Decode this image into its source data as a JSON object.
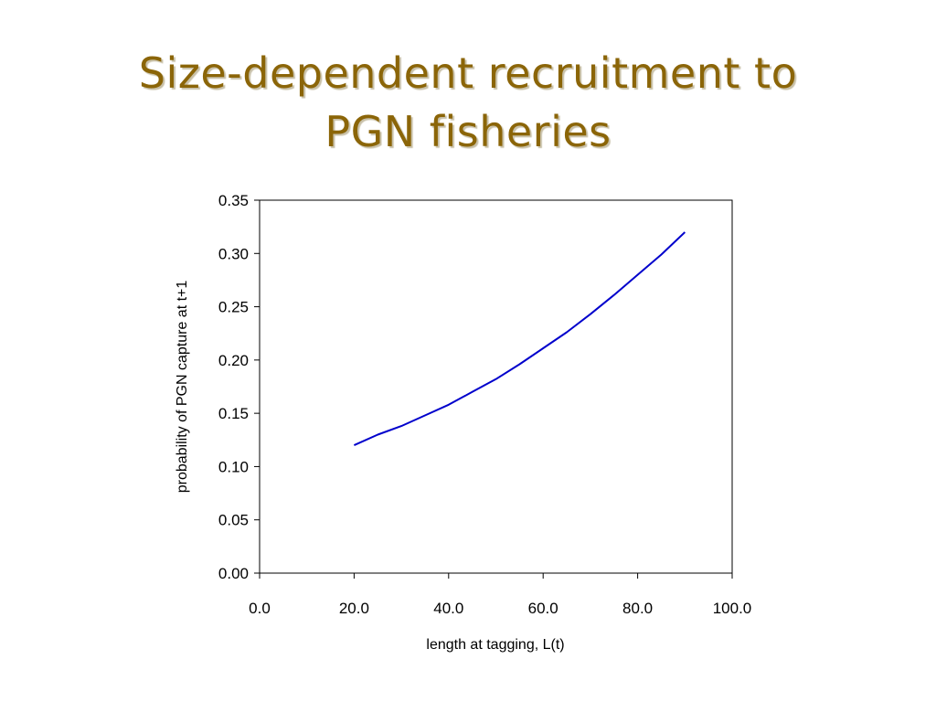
{
  "slide": {
    "title_line1": "Size-dependent recruitment to",
    "title_line2": "PGN fisheries",
    "title_color": "#8B6508"
  },
  "chart_data": {
    "type": "line",
    "xlabel": "length at tagging, L(t)",
    "ylabel": "probability of PGN capture at t+1",
    "xlim": [
      0,
      100
    ],
    "ylim": [
      0,
      0.35
    ],
    "xticks": [
      "0.0",
      "20.0",
      "40.0",
      "60.0",
      "80.0",
      "100.0"
    ],
    "yticks": [
      "0.00",
      "0.05",
      "0.10",
      "0.15",
      "0.20",
      "0.25",
      "0.30",
      "0.35"
    ],
    "grid": false,
    "series": [
      {
        "color": "#0000cc",
        "x": [
          20,
          25,
          30,
          35,
          40,
          45,
          50,
          55,
          60,
          65,
          70,
          75,
          80,
          85,
          90
        ],
        "y": [
          0.12,
          0.13,
          0.138,
          0.148,
          0.158,
          0.17,
          0.182,
          0.196,
          0.211,
          0.226,
          0.243,
          0.261,
          0.28,
          0.299,
          0.32
        ]
      }
    ]
  }
}
